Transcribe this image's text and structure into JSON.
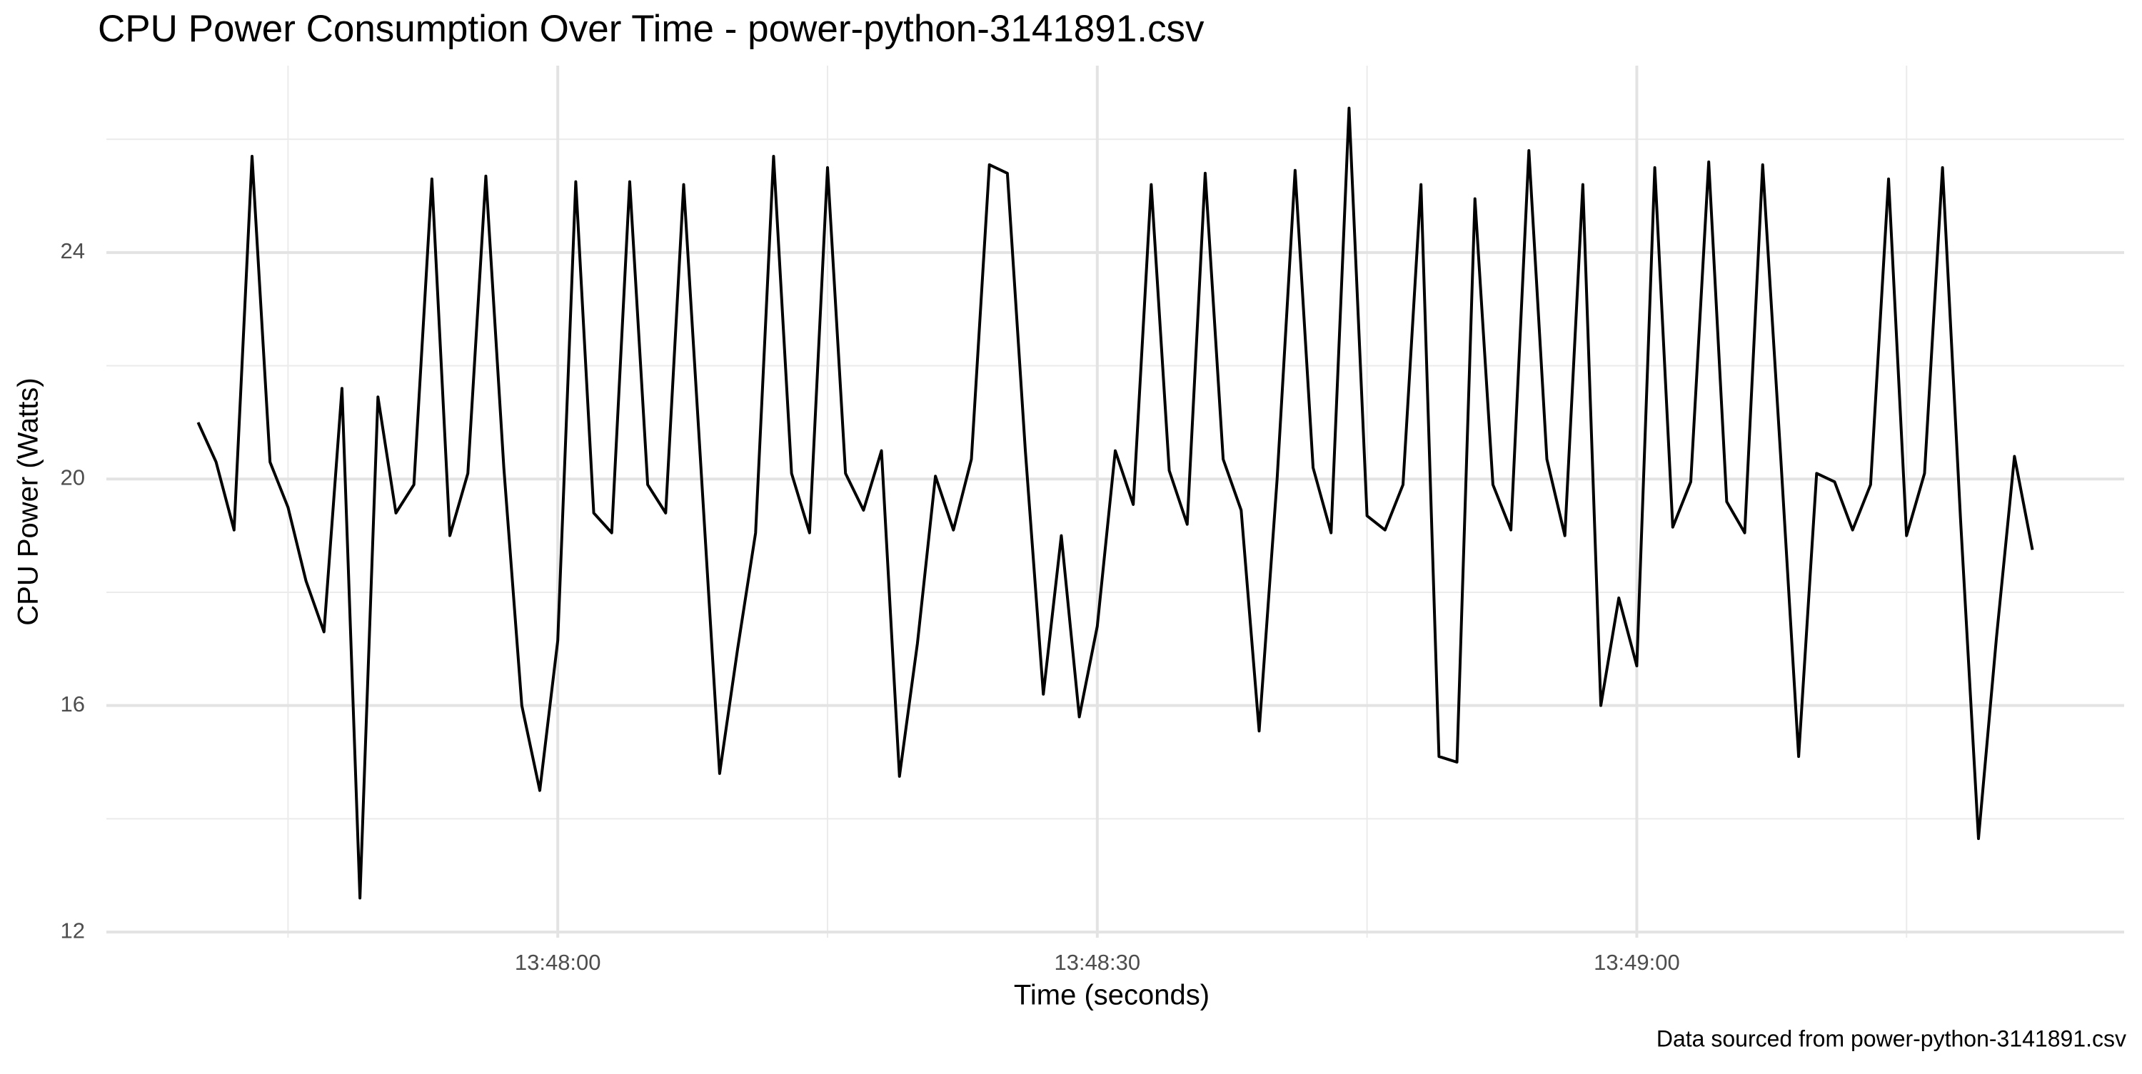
{
  "chart_data": {
    "type": "line",
    "title": "CPU Power Consumption Over Time - power-python-3141891.csv",
    "x_label": "Time (seconds)",
    "y_label": "CPU Power (Watts)",
    "caption": "Data sourced from power-python-3141891.csv",
    "x": [
      "13:47:40",
      "13:47:41",
      "13:47:42",
      "13:47:43",
      "13:47:44",
      "13:47:45",
      "13:47:46",
      "13:47:47",
      "13:47:48",
      "13:47:49",
      "13:47:50",
      "13:47:51",
      "13:47:52",
      "13:47:53",
      "13:47:54",
      "13:47:55",
      "13:47:56",
      "13:47:57",
      "13:47:58",
      "13:47:59",
      "13:48:00",
      "13:48:01",
      "13:48:02",
      "13:48:03",
      "13:48:04",
      "13:48:05",
      "13:48:06",
      "13:48:07",
      "13:48:08",
      "13:48:09",
      "13:48:10",
      "13:48:11",
      "13:48:12",
      "13:48:13",
      "13:48:14",
      "13:48:15",
      "13:48:16",
      "13:48:17",
      "13:48:18",
      "13:48:19",
      "13:48:20",
      "13:48:21",
      "13:48:22",
      "13:48:23",
      "13:48:24",
      "13:48:25",
      "13:48:26",
      "13:48:27",
      "13:48:28",
      "13:48:29",
      "13:48:30",
      "13:48:31",
      "13:48:32",
      "13:48:33",
      "13:48:34",
      "13:48:35",
      "13:48:36",
      "13:48:37",
      "13:48:38",
      "13:48:39",
      "13:48:40",
      "13:48:41",
      "13:48:42",
      "13:48:43",
      "13:48:44",
      "13:48:45",
      "13:48:46",
      "13:48:47",
      "13:48:48",
      "13:48:49",
      "13:48:50",
      "13:48:51",
      "13:48:52",
      "13:48:53",
      "13:48:54",
      "13:48:55",
      "13:48:56",
      "13:48:57",
      "13:48:58",
      "13:48:59",
      "13:49:00",
      "13:49:01",
      "13:49:02",
      "13:49:03",
      "13:49:04",
      "13:49:05",
      "13:49:06",
      "13:49:07",
      "13:49:08",
      "13:49:09",
      "13:49:10",
      "13:49:11",
      "13:49:12",
      "13:49:13",
      "13:49:14",
      "13:49:15",
      "13:49:16",
      "13:49:17",
      "13:49:18",
      "13:49:19",
      "13:49:20",
      "13:49:21",
      "13:49:22"
    ],
    "series": [
      {
        "color": "#000000",
        "values": [
          21.0,
          20.3,
          19.1,
          25.7,
          20.3,
          19.5,
          18.2,
          17.3,
          21.6,
          12.6,
          21.45,
          19.4,
          19.9,
          25.3,
          19.0,
          20.1,
          25.35,
          20.2,
          16.0,
          14.5,
          17.15,
          25.25,
          19.4,
          19.05,
          25.25,
          19.9,
          19.4,
          25.2,
          20.0,
          14.8,
          17.0,
          19.05,
          25.7,
          20.1,
          19.05,
          25.5,
          20.1,
          19.45,
          20.5,
          14.75,
          17.1,
          20.05,
          19.1,
          20.35,
          25.55,
          25.4,
          20.5,
          16.2,
          19.0,
          15.8,
          17.4,
          20.5,
          19.55,
          25.2,
          20.15,
          19.2,
          25.4,
          20.35,
          19.45,
          15.55,
          20.0,
          25.45,
          20.2,
          19.05,
          26.55,
          19.35,
          19.1,
          19.9,
          25.2,
          15.1,
          15.0,
          24.95,
          19.9,
          19.1,
          25.8,
          20.35,
          19.0,
          25.2,
          16.0,
          17.9,
          16.7,
          25.5,
          19.15,
          19.95,
          25.6,
          19.6,
          19.05,
          25.55,
          20.4,
          15.1,
          20.1,
          19.95,
          19.1,
          19.9,
          25.3,
          19.0,
          20.1,
          25.5,
          19.3,
          13.65,
          17.2,
          20.4,
          18.75
        ]
      }
    ],
    "xlim": [
      "13:47:34.9",
      "13:49:27.1"
    ],
    "xticks": [
      "13:48:00",
      "13:48:30",
      "13:49:00"
    ],
    "xminorticks": [
      "13:47:45",
      "13:48:15",
      "13:48:45",
      "13:49:15"
    ],
    "ylim": [
      11.9,
      27.3
    ],
    "yticks": [
      12,
      16,
      20,
      24
    ],
    "yminorticks": [
      14,
      18,
      22,
      26
    ],
    "grid": true
  }
}
